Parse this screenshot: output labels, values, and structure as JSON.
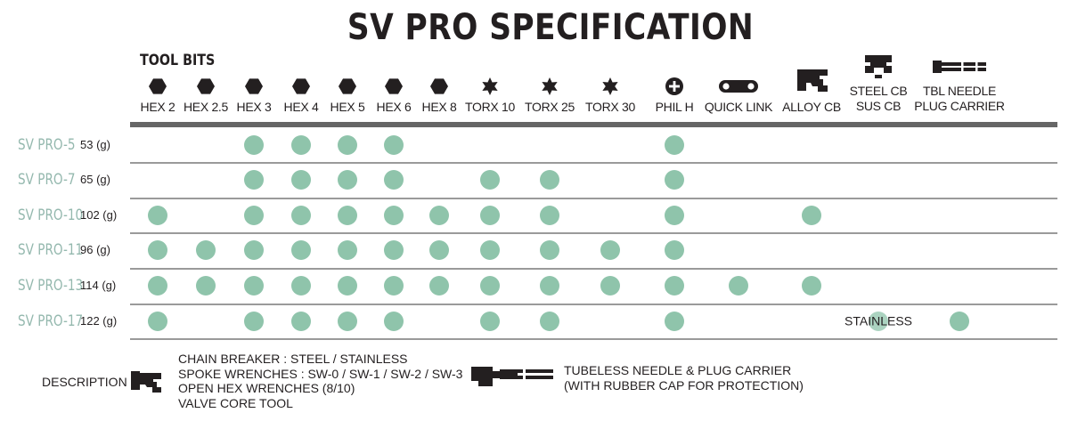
{
  "title": "SV PRO SPECIFICATION",
  "section_label": "TOOL BITS",
  "columns": [
    {
      "label": "HEX 2",
      "icon": "hexagon-icon"
    },
    {
      "label": "HEX 2.5",
      "icon": "hexagon-icon"
    },
    {
      "label": "HEX 3",
      "icon": "hexagon-icon"
    },
    {
      "label": "HEX 4",
      "icon": "hexagon-icon"
    },
    {
      "label": "HEX 5",
      "icon": "hexagon-icon"
    },
    {
      "label": "HEX 6",
      "icon": "hexagon-icon"
    },
    {
      "label": "HEX 8",
      "icon": "hexagon-icon"
    },
    {
      "label": "TORX 10",
      "icon": "torx-star-icon"
    },
    {
      "label": "TORX 25",
      "icon": "torx-star-icon"
    },
    {
      "label": "TORX 30",
      "icon": "torx-star-icon"
    },
    {
      "label": "PHIL H",
      "icon": "phillips-icon"
    },
    {
      "label": "QUICK LINK",
      "icon": "quick-link-icon"
    },
    {
      "label": "ALLOY CB",
      "icon": "chain-breaker-icon"
    },
    {
      "label": "STEEL CB\nSUS CB",
      "icon": "steel-chain-breaker-icon"
    },
    {
      "label": "TBL NEEDLE\nPLUG CARRIER",
      "icon": "needle-plug-icon"
    }
  ],
  "rows": [
    {
      "name": "SV PRO-5",
      "weight": "53 (g)",
      "cells": [
        0,
        0,
        1,
        1,
        1,
        1,
        0,
        0,
        0,
        0,
        1,
        0,
        0,
        0,
        0
      ]
    },
    {
      "name": "SV PRO-7",
      "weight": "65 (g)",
      "cells": [
        0,
        0,
        1,
        1,
        1,
        1,
        0,
        1,
        1,
        0,
        1,
        0,
        0,
        0,
        0
      ]
    },
    {
      "name": "SV PRO-10",
      "weight": "102 (g)",
      "cells": [
        1,
        0,
        1,
        1,
        1,
        1,
        1,
        1,
        1,
        0,
        1,
        0,
        1,
        0,
        0
      ]
    },
    {
      "name": "SV PRO-11",
      "weight": "96 (g)",
      "cells": [
        1,
        1,
        1,
        1,
        1,
        1,
        1,
        1,
        1,
        1,
        1,
        0,
        0,
        0,
        0
      ]
    },
    {
      "name": "SV PRO-13",
      "weight": "114 (g)",
      "cells": [
        1,
        1,
        1,
        1,
        1,
        1,
        1,
        1,
        1,
        1,
        1,
        1,
        1,
        0,
        0
      ]
    },
    {
      "name": "SV PRO-17",
      "weight": "122 (g)",
      "cells": [
        1,
        0,
        1,
        1,
        1,
        1,
        0,
        1,
        1,
        0,
        1,
        0,
        0,
        1,
        1
      ],
      "note": "STAINLESS"
    }
  ],
  "description": {
    "label": "DESCRIPTION :",
    "chain_breaker_lines": [
      "CHAIN BREAKER : STEEL / STAINLESS",
      "SPOKE WRENCHES : SW-0 / SW-1 / SW-2 / SW-3",
      "OPEN HEX WRENCHES (8/10)",
      "VALVE CORE TOOL"
    ],
    "needle_lines": [
      "TUBELESS NEEDLE & PLUG CARRIER",
      "(WITH RUBBER CAP FOR PROTECTION)"
    ]
  },
  "colors": {
    "dot": "#8fc4ab",
    "row_name": "#94b8ae",
    "header_rule": "#666666",
    "row_rule": "#9a9a9a",
    "text": "#231f20"
  }
}
